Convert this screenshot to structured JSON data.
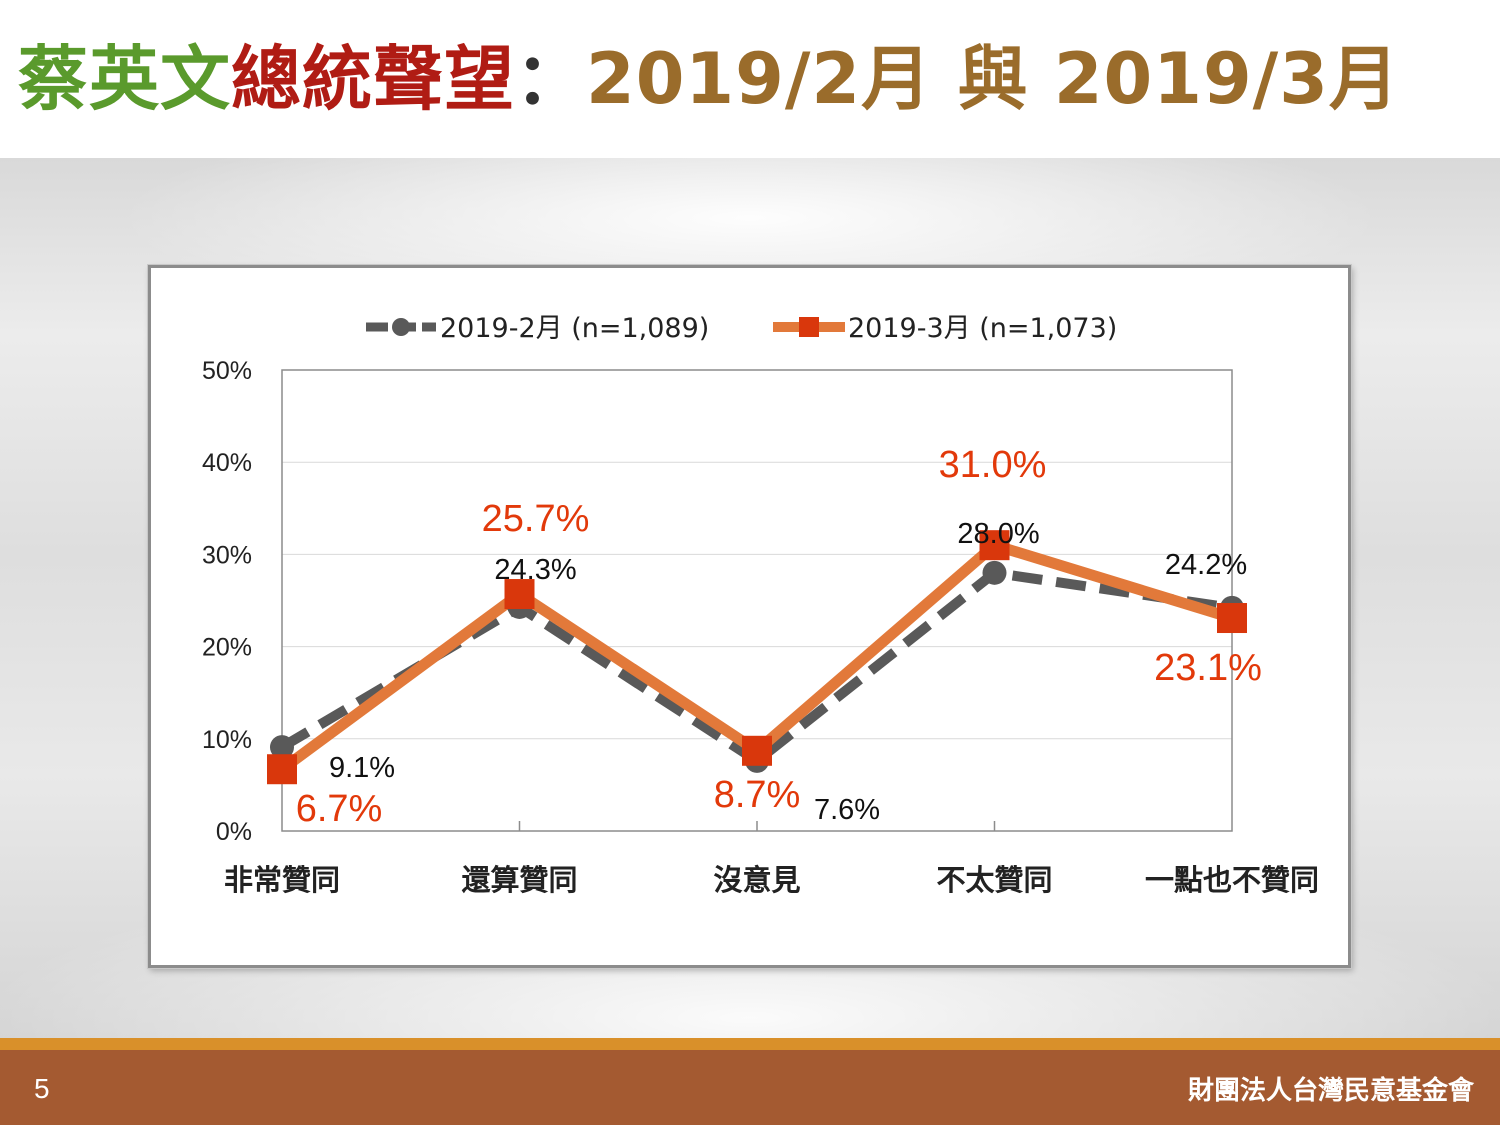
{
  "slide": {
    "title_part1": "蔡英文",
    "title_part2": "總統聲望",
    "title_sep": "：",
    "title_part3": "2019/2月 與 2019/3月",
    "page_number": "5",
    "organization": "財團法人台灣民意基金會",
    "colors": {
      "title_green": "#5a9a2c",
      "title_red": "#b01c14",
      "title_brown": "#9a6c2b",
      "footer": "#a45a31",
      "footer_line": "#d9902a"
    }
  },
  "chart_data": {
    "type": "line",
    "categories": [
      "非常贊同",
      "還算贊同",
      "沒意見",
      "不太贊同",
      "一點也不贊同"
    ],
    "yticks": [
      "0%",
      "10%",
      "20%",
      "30%",
      "40%",
      "50%"
    ],
    "ylim": [
      0,
      50
    ],
    "grid": true,
    "legend_position": "top",
    "series": [
      {
        "name": "2019-2月  (n=1,089)",
        "values": [
          9.1,
          24.3,
          7.6,
          28.0,
          24.2
        ],
        "labels": [
          "9.1%",
          "24.3%",
          "7.6%",
          "28.0%",
          "24.2%"
        ],
        "color": "#595959",
        "style": "dashed",
        "marker": "circle"
      },
      {
        "name": "2019-3月  (n=1,073)",
        "values": [
          6.7,
          25.7,
          8.7,
          31.0,
          23.1
        ],
        "labels": [
          "6.7%",
          "25.7%",
          "8.7%",
          "31.0%",
          "23.1%"
        ],
        "color": "#e2793a",
        "marker_color": "#d9370c",
        "label_color": "#e2390a",
        "style": "solid",
        "marker": "square"
      }
    ]
  }
}
